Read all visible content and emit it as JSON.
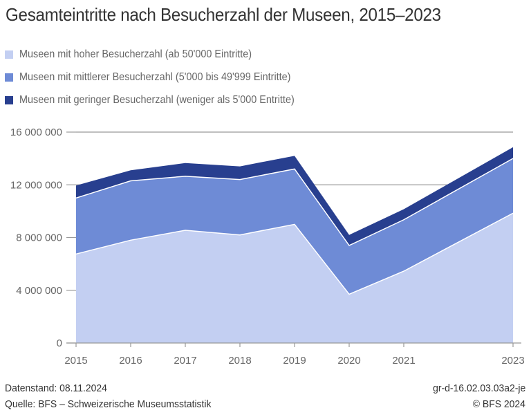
{
  "chart_data": {
    "type": "area",
    "stacked": true,
    "title": "Gesamteintritte nach Besucherzahl der Museen, 2015–2023",
    "xlabel": "",
    "ylabel": "",
    "x": [
      2015,
      2016,
      2017,
      2018,
      2019,
      2020,
      2021,
      2023
    ],
    "x_tick_labels": [
      "2015",
      "2016",
      "2017",
      "2018",
      "2019",
      "2020",
      "2021",
      "2023"
    ],
    "xlim": [
      2015,
      2023
    ],
    "ylim": [
      0,
      16000000
    ],
    "y_ticks": [
      0,
      4000000,
      8000000,
      12000000,
      16000000
    ],
    "y_tick_labels": [
      "0",
      "4 000 000",
      "8 000 000",
      "12 000 000",
      "16 000 000"
    ],
    "grid": true,
    "legend_position": "top-left",
    "series": [
      {
        "name": "Museen mit hoher Besucherzahl (ab 50'000 Eintritte)",
        "color": "#c3cff2",
        "values": [
          6750000,
          7800000,
          8550000,
          8200000,
          9000000,
          3700000,
          5450000,
          9850000
        ]
      },
      {
        "name": "Museen mit mittlerer Besucherzahl (5'000 bis 49'999 Eintritte)",
        "color": "#6e8bd6",
        "values": [
          4250000,
          4500000,
          4100000,
          4200000,
          4200000,
          3700000,
          3900000,
          4150000
        ]
      },
      {
        "name": "Museen mit geringer Besucherzahl (weniger als 5'000 Entritte)",
        "color": "#283f8f",
        "values": [
          950000,
          800000,
          1000000,
          1000000,
          1000000,
          800000,
          800000,
          850000
        ]
      }
    ]
  },
  "footer": {
    "date": "Datenstand: 08.11.2024",
    "source": "Quelle: BFS – Schweizerische Museumsstatistik",
    "code": "gr-d-16.02.03.03a2-je",
    "copyright": "© BFS 2024"
  }
}
